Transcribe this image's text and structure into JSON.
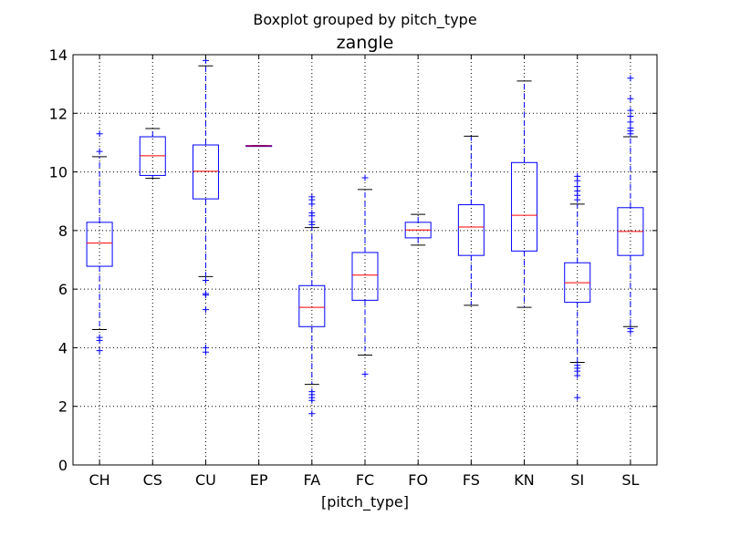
{
  "chart_data": {
    "type": "boxplot",
    "suptitle": "Boxplot grouped by pitch_type",
    "title": "zangle",
    "xlabel": "[pitch_type]",
    "ylabel": "",
    "ylim": [
      0,
      14
    ],
    "yticks": [
      0,
      2,
      4,
      6,
      8,
      10,
      12,
      14
    ],
    "grid": true,
    "colors": {
      "box": "#0000ff",
      "median": "#ff0000",
      "cap": "#000000",
      "grid": "#000000"
    },
    "categories": [
      "CH",
      "CS",
      "CU",
      "EP",
      "FA",
      "FC",
      "FO",
      "FS",
      "KN",
      "SI",
      "SL"
    ],
    "boxes": [
      {
        "category": "CH",
        "whisker_low": 4.62,
        "q1": 6.78,
        "median": 7.57,
        "q3": 8.28,
        "whisker_high": 10.52,
        "fliers": [
          3.9,
          4.25,
          4.35,
          10.7,
          11.3
        ]
      },
      {
        "category": "CS",
        "whisker_low": 9.78,
        "q1": 9.88,
        "median": 10.55,
        "q3": 11.2,
        "whisker_high": 11.48,
        "fliers": []
      },
      {
        "category": "CU",
        "whisker_low": 6.43,
        "q1": 9.08,
        "median": 10.02,
        "q3": 10.92,
        "whisker_high": 13.62,
        "fliers": [
          3.85,
          4.0,
          5.3,
          5.8,
          5.85,
          6.3,
          13.8
        ]
      },
      {
        "category": "EP",
        "whisker_low": 10.88,
        "q1": 10.88,
        "median": 10.89,
        "q3": 10.9,
        "whisker_high": 10.9,
        "fliers": []
      },
      {
        "category": "FA",
        "whisker_low": 2.75,
        "q1": 4.72,
        "median": 5.38,
        "q3": 6.12,
        "whisker_high": 8.1,
        "fliers": [
          1.75,
          2.2,
          2.3,
          2.4,
          2.5,
          8.2,
          8.3,
          8.5,
          8.6,
          8.9,
          9.05,
          9.15
        ]
      },
      {
        "category": "FC",
        "whisker_low": 3.75,
        "q1": 5.62,
        "median": 6.48,
        "q3": 7.25,
        "whisker_high": 9.4,
        "fliers": [
          3.1,
          9.8
        ]
      },
      {
        "category": "FO",
        "whisker_low": 7.5,
        "q1": 7.75,
        "median": 8.02,
        "q3": 8.28,
        "whisker_high": 8.55,
        "fliers": []
      },
      {
        "category": "FS",
        "whisker_low": 5.45,
        "q1": 7.15,
        "median": 8.12,
        "q3": 8.88,
        "whisker_high": 11.22,
        "fliers": []
      },
      {
        "category": "KN",
        "whisker_low": 5.38,
        "q1": 7.3,
        "median": 8.52,
        "q3": 10.32,
        "whisker_high": 13.1,
        "fliers": []
      },
      {
        "category": "SI",
        "whisker_low": 3.5,
        "q1": 5.55,
        "median": 6.22,
        "q3": 6.9,
        "whisker_high": 8.9,
        "fliers": [
          2.3,
          3.05,
          3.2,
          3.3,
          3.4,
          9.05,
          9.2,
          9.35,
          9.5,
          9.7,
          9.85
        ]
      },
      {
        "category": "SL",
        "whisker_low": 4.72,
        "q1": 7.15,
        "median": 7.97,
        "q3": 8.78,
        "whisker_high": 11.2,
        "fliers": [
          4.55,
          4.65,
          11.3,
          11.4,
          11.5,
          11.7,
          11.9,
          12.1,
          12.5,
          13.2
        ]
      }
    ]
  }
}
